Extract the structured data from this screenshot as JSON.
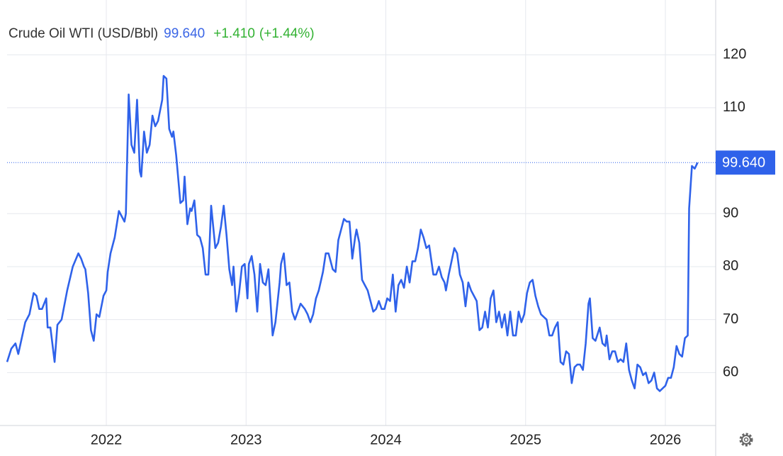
{
  "chart_data": {
    "type": "line",
    "title": "Crude Oil WTI (USD/Bbl)",
    "price_label": "99.640",
    "change": "+1.410",
    "change_percent": "(+1.44%)",
    "color": "#2f62ea",
    "grid": true,
    "xlim": [
      2021.29,
      2026.36
    ],
    "xticks": [
      2022,
      2023,
      2024,
      2025,
      2026
    ],
    "ylim": [
      50,
      129
    ],
    "yticks": [
      60,
      70,
      80,
      90,
      110,
      120
    ],
    "x": [
      2021.29,
      2021.32,
      2021.35,
      2021.37,
      2021.42,
      2021.45,
      2021.48,
      2021.5,
      2021.52,
      2021.54,
      2021.57,
      2021.58,
      2021.6,
      2021.63,
      2021.65,
      2021.68,
      2021.72,
      2021.76,
      2021.8,
      2021.82,
      2021.84,
      2021.85,
      2021.87,
      2021.89,
      2021.91,
      2021.93,
      2021.95,
      2021.98,
      2022.0,
      2022.01,
      2022.03,
      2022.06,
      2022.09,
      2022.11,
      2022.13,
      2022.14,
      2022.16,
      2022.18,
      2022.2,
      2022.22,
      2022.24,
      2022.25,
      2022.27,
      2022.29,
      2022.31,
      2022.33,
      2022.35,
      2022.37,
      2022.4,
      2022.41,
      2022.43,
      2022.45,
      2022.47,
      2022.48,
      2022.5,
      2022.53,
      2022.55,
      2022.56,
      2022.58,
      2022.6,
      2022.61,
      2022.63,
      2022.65,
      2022.67,
      2022.69,
      2022.71,
      2022.73,
      2022.75,
      2022.78,
      2022.8,
      2022.82,
      2022.84,
      2022.86,
      2022.88,
      2022.9,
      2022.91,
      2022.93,
      2022.95,
      2022.97,
      2022.99,
      2023.01,
      2023.02,
      2023.04,
      2023.06,
      2023.08,
      2023.1,
      2023.12,
      2023.14,
      2023.16,
      2023.19,
      2023.21,
      2023.24,
      2023.25,
      2023.27,
      2023.29,
      2023.31,
      2023.33,
      2023.35,
      2023.37,
      2023.39,
      2023.42,
      2023.44,
      2023.46,
      2023.48,
      2023.5,
      2023.52,
      2023.55,
      2023.57,
      2023.59,
      2023.6,
      2023.62,
      2023.64,
      2023.66,
      2023.68,
      2023.7,
      2023.72,
      2023.74,
      2023.76,
      2023.78,
      2023.79,
      2023.81,
      2023.83,
      2023.85,
      2023.87,
      2023.89,
      2023.91,
      2023.93,
      2023.95,
      2023.97,
      2023.99,
      2024.01,
      2024.03,
      2024.05,
      2024.07,
      2024.09,
      2024.11,
      2024.13,
      2024.15,
      2024.17,
      2024.19,
      2024.21,
      2024.23,
      2024.25,
      2024.27,
      2024.29,
      2024.31,
      2024.34,
      2024.36,
      2024.38,
      2024.4,
      2024.42,
      2024.43,
      2024.45,
      2024.47,
      2024.49,
      2024.51,
      2024.53,
      2024.55,
      2024.57,
      2024.59,
      2024.61,
      2024.63,
      2024.65,
      2024.67,
      2024.69,
      2024.71,
      2024.73,
      2024.75,
      2024.77,
      2024.79,
      2024.81,
      2024.83,
      2024.85,
      2024.87,
      2024.89,
      2024.91,
      2024.93,
      2024.95,
      2024.97,
      2024.99,
      2025.01,
      2025.03,
      2025.05,
      2025.07,
      2025.09,
      2025.11,
      2025.13,
      2025.15,
      2025.17,
      2025.19,
      2025.21,
      2025.23,
      2025.25,
      2025.27,
      2025.29,
      2025.31,
      2025.33,
      2025.35,
      2025.37,
      2025.39,
      2025.41,
      2025.43,
      2025.45,
      2025.46,
      2025.48,
      2025.5,
      2025.53,
      2025.55,
      2025.57,
      2025.58,
      2025.6,
      2025.62,
      2025.64,
      2025.66,
      2025.68,
      2025.7,
      2025.72,
      2025.74,
      2025.76,
      2025.78,
      2025.8,
      2025.82,
      2025.84,
      2025.86,
      2025.88,
      2025.9,
      2025.92,
      2025.94,
      2025.96,
      2025.98,
      2026.0,
      2026.02,
      2026.04,
      2026.06,
      2026.08,
      2026.1,
      2026.12,
      2026.14,
      2026.16,
      2026.17,
      2026.19,
      2026.21,
      2026.23
    ],
    "values": [
      62,
      64.5,
      65.5,
      63.5,
      69.5,
      71,
      75,
      74.5,
      72,
      72,
      74,
      68.5,
      68.5,
      62,
      69,
      70,
      75.5,
      80,
      82.5,
      81.5,
      80,
      79.5,
      75,
      68,
      66,
      71,
      70.5,
      74.5,
      75.5,
      79,
      82.5,
      85.5,
      90.5,
      89.5,
      88.5,
      90,
      112.5,
      103,
      101.5,
      111.5,
      98,
      97,
      105.5,
      101.5,
      103,
      108.5,
      106.5,
      107.5,
      111.5,
      116,
      115.5,
      106,
      104.5,
      105.5,
      101,
      92,
      92.5,
      97,
      88,
      91,
      90.5,
      92.5,
      86,
      85.5,
      83.5,
      78.5,
      78.5,
      91.5,
      83.5,
      84.5,
      87.5,
      91.5,
      86,
      79.5,
      76.5,
      80,
      71.5,
      75,
      80,
      80.5,
      74,
      80.5,
      82,
      78.5,
      71.5,
      80.5,
      77,
      76.5,
      79.5,
      67,
      69.5,
      77,
      80.5,
      82.5,
      76.5,
      77,
      71.5,
      70,
      71.5,
      73,
      72,
      71,
      69.5,
      71,
      74,
      75.5,
      79,
      82.5,
      82.5,
      81.5,
      79.5,
      79,
      85,
      87,
      89,
      88.5,
      88.5,
      81.5,
      85.5,
      87,
      84.5,
      77.5,
      76.5,
      75.5,
      73.5,
      71.5,
      72,
      73.5,
      72,
      72,
      74,
      73.5,
      78.5,
      71.5,
      76.5,
      77.5,
      76,
      80,
      77,
      81,
      81,
      83.5,
      87,
      85.5,
      83.5,
      84,
      78.5,
      78.5,
      80,
      78,
      77,
      75.5,
      78.5,
      81,
      83.5,
      82.5,
      78.5,
      77,
      72.5,
      77,
      75.5,
      74.5,
      73.5,
      68,
      68.5,
      71.5,
      68.5,
      74,
      75.5,
      69.5,
      71.5,
      68.5,
      71,
      67,
      71.5,
      67,
      67,
      71.5,
      69.5,
      71,
      75,
      77,
      77.5,
      74.5,
      72.5,
      71,
      70.5,
      70,
      67,
      67,
      68.5,
      69.5,
      62,
      61.5,
      64,
      63.5,
      58,
      61,
      61.5,
      61.5,
      60.5,
      65.5,
      73,
      74,
      66.5,
      66,
      68.5,
      65.5,
      65,
      67,
      62.5,
      64,
      64,
      62,
      62.5,
      62,
      65.5,
      60.5,
      58.5,
      57,
      61.5,
      61,
      59.5,
      60,
      58,
      58.5,
      60,
      57,
      56.5,
      57,
      57.5,
      59,
      59,
      61,
      65,
      63.5,
      63,
      66.5,
      67,
      91,
      99,
      98.5,
      99.64
    ]
  }
}
